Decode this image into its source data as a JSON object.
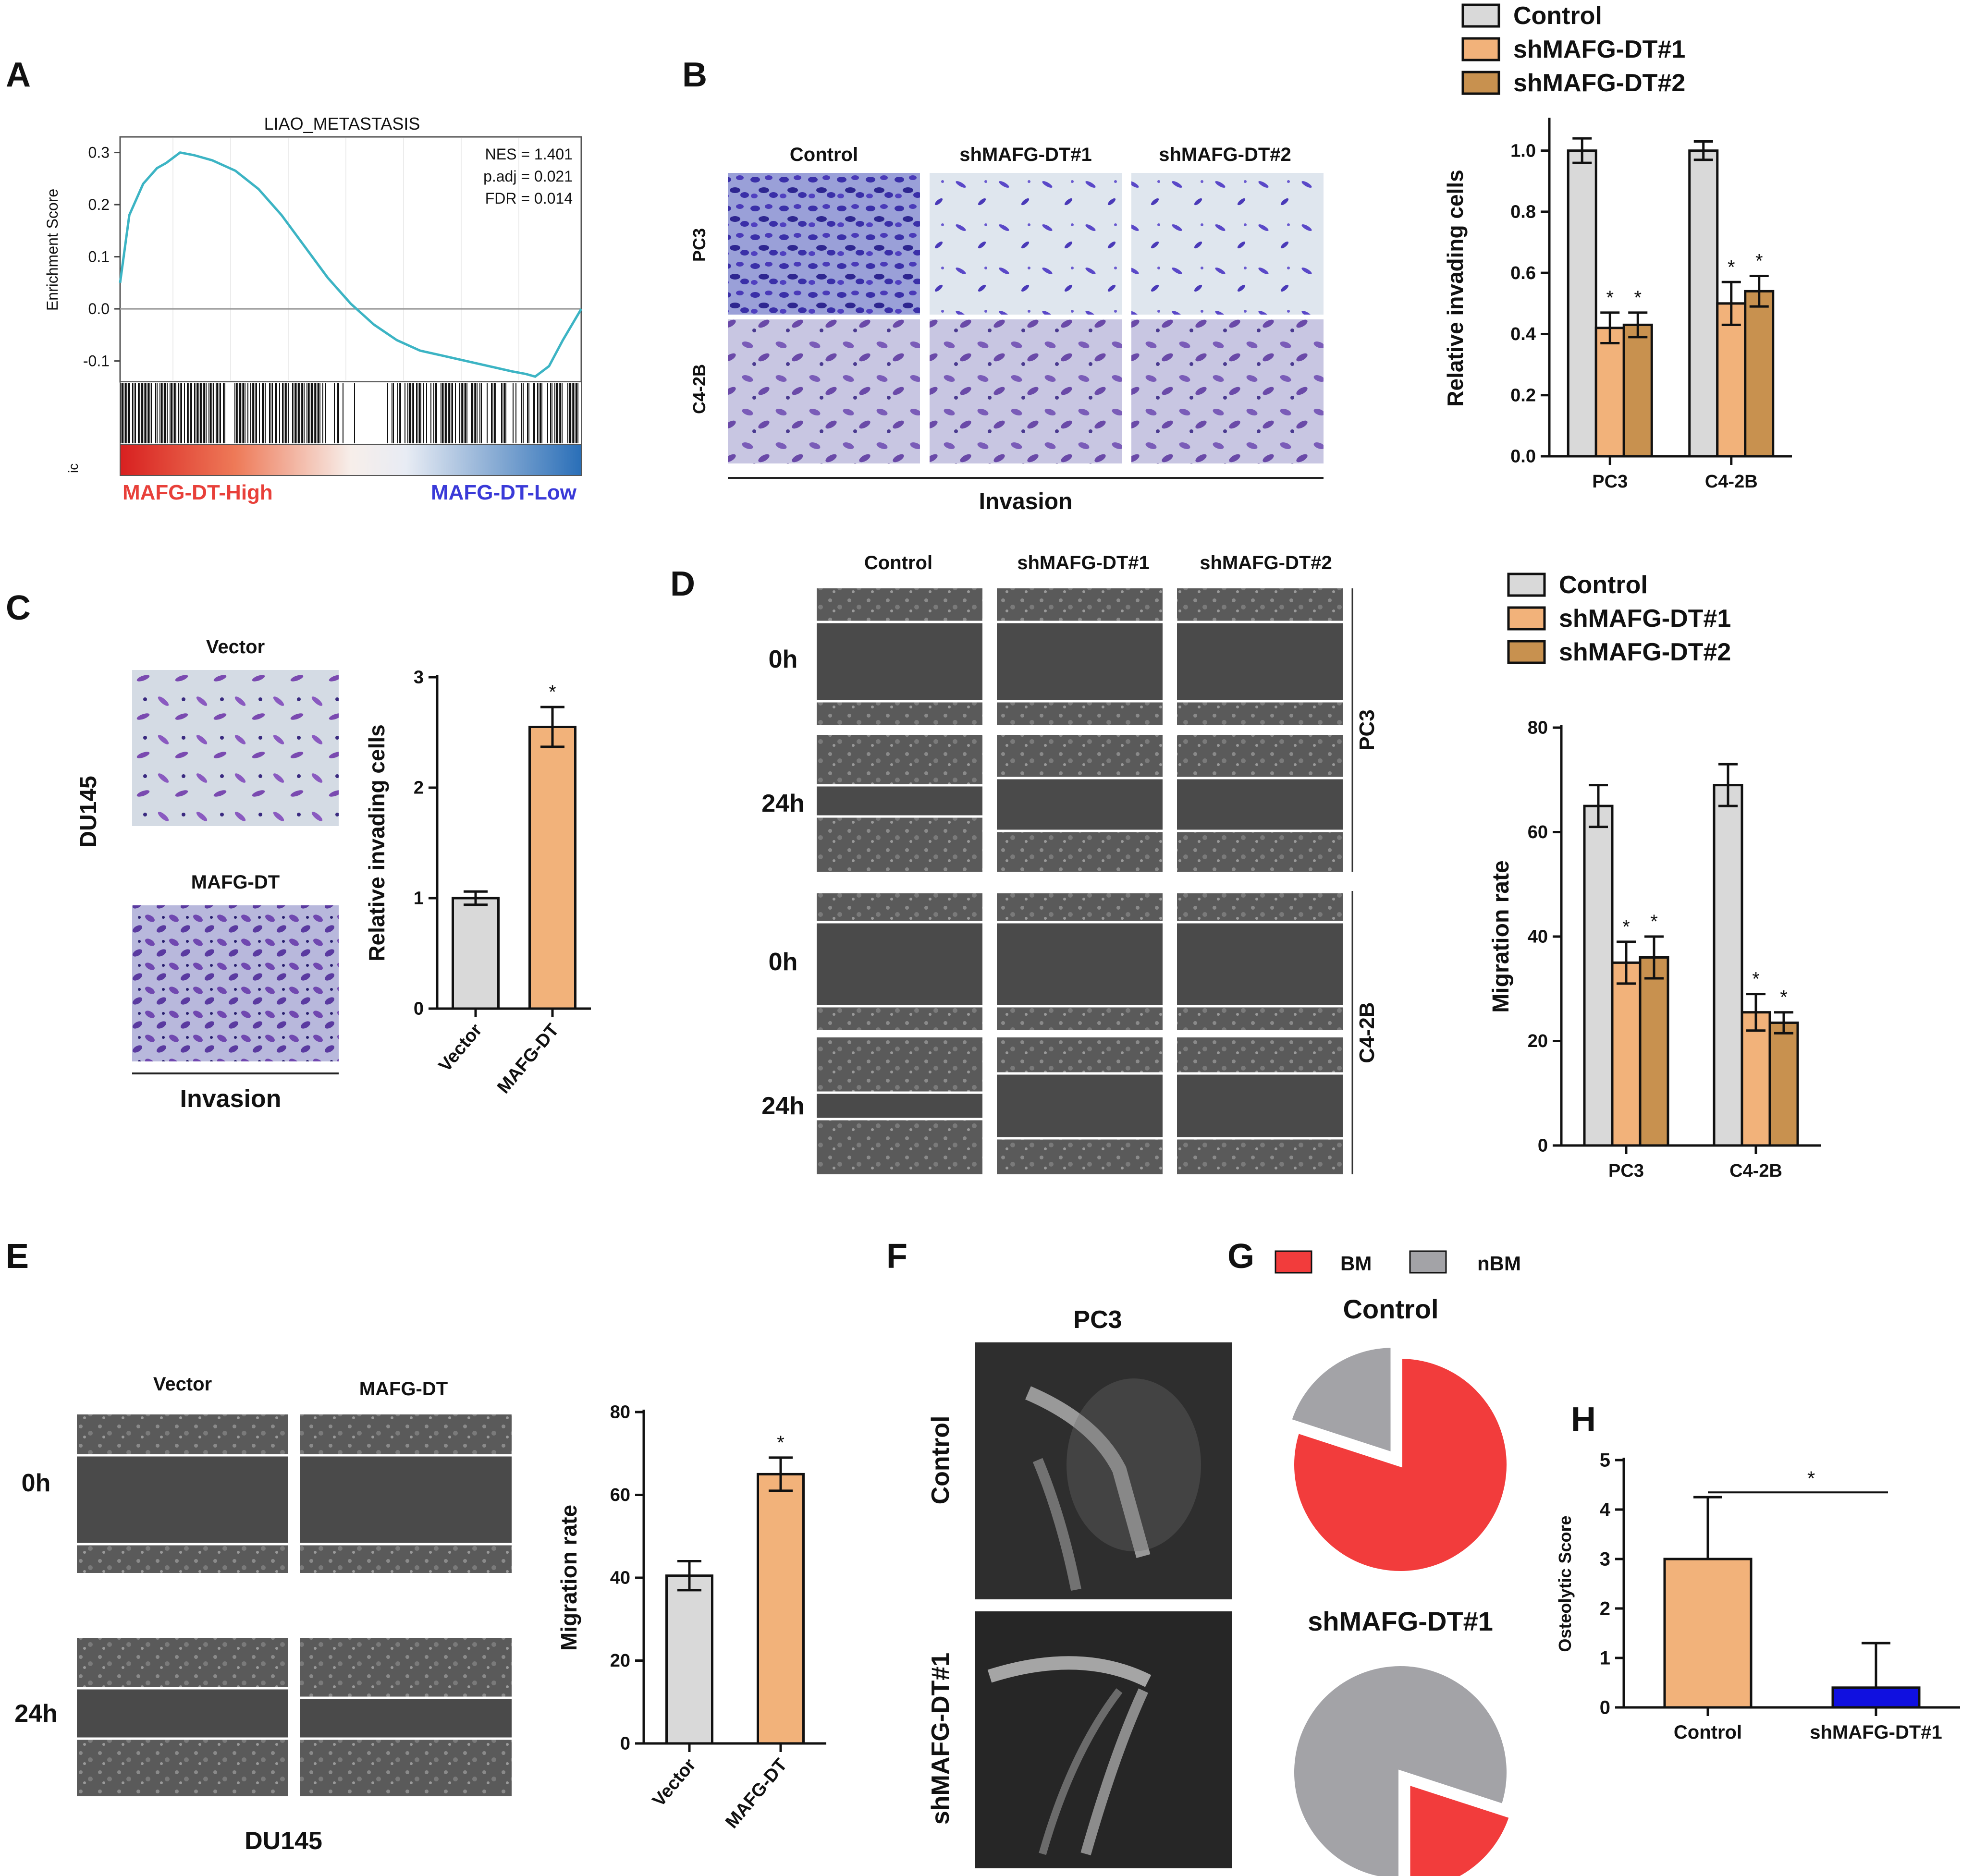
{
  "panels": {
    "A": {
      "letter": "A",
      "plot_title": "LIAO_METASTASIS",
      "stats": [
        "NES = 1.401",
        "p.adj = 0.021",
        "FDR = 0.014"
      ],
      "ylabel": "Enrichment Score",
      "high_label": "MAFG-DT-High",
      "low_label": "MAFG-DT-Low",
      "clipped_label": "ic"
    },
    "B": {
      "letter": "B",
      "col_labels": [
        "Control",
        "shMAFG-DT#1",
        "shMAFG-DT#2"
      ],
      "row_labels": [
        "PC3",
        "C4-2B"
      ],
      "footer": "Invasion"
    },
    "C": {
      "letter": "C",
      "image_labels": [
        "Vector",
        "MAFG-DT"
      ],
      "side_label": "DU145",
      "footer": "Invasion"
    },
    "D": {
      "letter": "D",
      "col_labels": [
        "Control",
        "shMAFG-DT#1",
        "shMAFG-DT#2"
      ],
      "time_labels": [
        "0h",
        "24h",
        "0h",
        "24h"
      ],
      "group_labels": [
        "PC3",
        "C4-2B"
      ]
    },
    "E": {
      "letter": "E",
      "col_labels": [
        "Vector",
        "MAFG-DT"
      ],
      "time_labels": [
        "0h",
        "24h"
      ],
      "footer": "DU145"
    },
    "F": {
      "letter": "F",
      "title": "PC3",
      "row_labels": [
        "Control",
        "shMAFG-DT#1"
      ]
    },
    "G": {
      "letter": "G",
      "legend": [
        "BM",
        "nBM"
      ],
      "pie_titles": [
        "Control",
        "shMAFG-DT#1"
      ]
    },
    "H": {
      "letter": "H"
    }
  },
  "colors": {
    "control_gray": "#d9d9d9",
    "sh1_orange": "#f2b27a",
    "sh2_brown": "#c8914f",
    "bm_red": "#f23c3c",
    "nbm_gray": "#a3a3a7",
    "shmafg_blue": "#1010e0",
    "gsea_line": "#3cb4c4",
    "label_red": "#e8403a",
    "label_blue": "#3a3ad8"
  },
  "chart_data": [
    {
      "id": "A",
      "type": "line",
      "title": "LIAO_METASTASIS",
      "ylabel": "Enrichment Score",
      "yticks": [
        "0.3",
        "0.2",
        "0.1",
        "0.0",
        "-0.1"
      ],
      "ylim": [
        -0.14,
        0.33
      ],
      "x": [
        0,
        0.02,
        0.05,
        0.08,
        0.1,
        0.13,
        0.16,
        0.2,
        0.25,
        0.3,
        0.35,
        0.4,
        0.45,
        0.5,
        0.55,
        0.6,
        0.65,
        0.7,
        0.75,
        0.8,
        0.85,
        0.88,
        0.9,
        0.93,
        0.96,
        1.0
      ],
      "values": [
        0.05,
        0.18,
        0.24,
        0.27,
        0.28,
        0.3,
        0.295,
        0.285,
        0.265,
        0.23,
        0.18,
        0.12,
        0.06,
        0.01,
        -0.03,
        -0.06,
        -0.08,
        -0.09,
        -0.1,
        -0.11,
        -0.12,
        -0.125,
        -0.13,
        -0.11,
        -0.06,
        0.0
      ]
    },
    {
      "id": "B",
      "type": "bar",
      "ylabel": "Relative invading  cells",
      "yticks": [
        "0.0",
        "0.2",
        "0.4",
        "0.6",
        "0.8",
        "1.0"
      ],
      "ylim": [
        0,
        1.1
      ],
      "categories": [
        "PC3",
        "C4-2B"
      ],
      "legend": "top",
      "series": [
        {
          "name": "Control",
          "values": [
            1.0,
            1.0
          ],
          "errors": [
            0.04,
            0.03
          ]
        },
        {
          "name": "shMAFG-DT#1",
          "values": [
            0.42,
            0.5
          ],
          "errors": [
            0.05,
            0.07
          ]
        },
        {
          "name": "shMAFG-DT#2",
          "values": [
            0.43,
            0.54
          ],
          "errors": [
            0.04,
            0.05
          ]
        }
      ],
      "annotations": [
        "*"
      ]
    },
    {
      "id": "C",
      "type": "bar",
      "ylabel": "Relative invading  cells",
      "yticks": [
        "0",
        "1",
        "2",
        "3"
      ],
      "ylim": [
        0,
        3
      ],
      "categories": [
        "Vector",
        "MAFG-DT"
      ],
      "values": [
        1.0,
        2.55
      ],
      "errors": [
        0.06,
        0.18
      ],
      "annotations": [
        "*"
      ]
    },
    {
      "id": "D",
      "type": "bar",
      "ylabel": "Migration rate",
      "yticks": [
        "0",
        "20",
        "40",
        "60",
        "80"
      ],
      "ylim": [
        0,
        80
      ],
      "categories": [
        "PC3",
        "C4-2B"
      ],
      "legend": "top",
      "series": [
        {
          "name": "Control",
          "values": [
            65,
            69
          ],
          "errors": [
            4,
            4
          ]
        },
        {
          "name": "shMAFG-DT#1",
          "values": [
            35,
            25.5
          ],
          "errors": [
            4,
            3.5
          ]
        },
        {
          "name": "shMAFG-DT#2",
          "values": [
            36,
            23.5
          ],
          "errors": [
            4,
            2
          ]
        }
      ],
      "annotations": [
        "*"
      ]
    },
    {
      "id": "E",
      "type": "bar",
      "ylabel": "Migration rate",
      "yticks": [
        "0",
        "20",
        "40",
        "60",
        "80"
      ],
      "ylim": [
        0,
        80
      ],
      "categories": [
        "Vector",
        "MAFG-DT"
      ],
      "values": [
        40.5,
        65
      ],
      "errors": [
        3.5,
        4
      ],
      "annotations": [
        "*"
      ]
    },
    {
      "id": "G",
      "type": "pie",
      "legend": "top",
      "series_names": [
        "BM",
        "nBM"
      ],
      "pies": [
        {
          "title": "Control",
          "values": [
            80,
            20
          ]
        },
        {
          "title": "shMAFG-DT#1",
          "values": [
            20,
            80
          ]
        }
      ]
    },
    {
      "id": "H",
      "type": "bar",
      "ylabel": "Osteolytic Score",
      "yticks": [
        "0",
        "1",
        "2",
        "3",
        "4",
        "5"
      ],
      "ylim": [
        0,
        5
      ],
      "categories": [
        "Control",
        "shMAFG-DT#1"
      ],
      "values": [
        3.0,
        0.4
      ],
      "errors": [
        1.25,
        0.9
      ],
      "annotations": [
        "*"
      ]
    }
  ]
}
